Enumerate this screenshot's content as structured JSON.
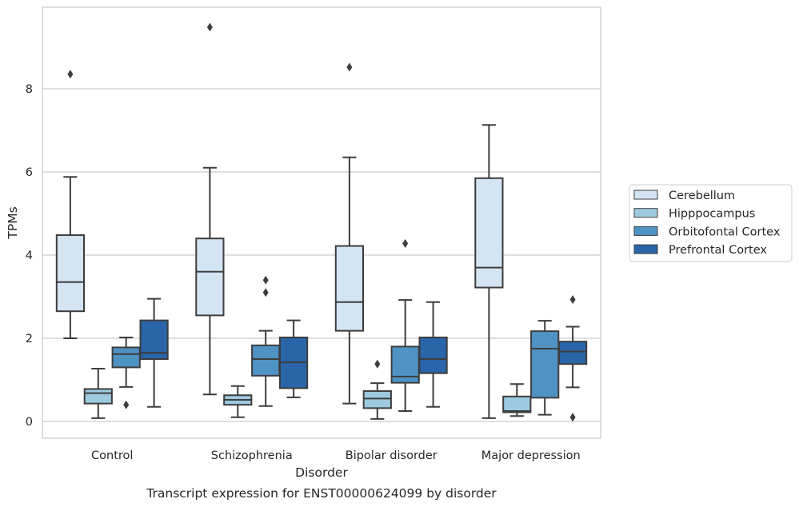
{
  "caption": "Transcript expression for ENST00000624099 by disorder",
  "chart_data": {
    "type": "box",
    "title": "",
    "xlabel": "Disorder",
    "ylabel": "TPMs",
    "ylim": [
      -0.4,
      9.9
    ],
    "yticks": [
      0,
      2,
      4,
      6,
      8
    ],
    "grid": true,
    "legend_position": "right",
    "categories": [
      "Control",
      "Schizophrenia",
      "Bipolar disorder",
      "Major depression"
    ],
    "series": [
      {
        "name": "Cerebellum",
        "color": "#d3e4f3",
        "boxes": [
          {
            "whisker_low": 2.0,
            "q1": 2.65,
            "median": 3.35,
            "q3": 4.48,
            "whisker_high": 5.88,
            "outliers": [
              8.35
            ]
          },
          {
            "whisker_low": 0.65,
            "q1": 2.55,
            "median": 3.6,
            "q3": 4.4,
            "whisker_high": 6.1,
            "outliers": [
              9.48
            ]
          },
          {
            "whisker_low": 0.43,
            "q1": 2.18,
            "median": 2.87,
            "q3": 4.22,
            "whisker_high": 6.35,
            "outliers": [
              8.52
            ]
          },
          {
            "whisker_low": 0.08,
            "q1": 3.22,
            "median": 3.7,
            "q3": 5.85,
            "whisker_high": 7.13,
            "outliers": []
          }
        ]
      },
      {
        "name": "Hipppocampus",
        "color": "#9ecae1",
        "boxes": [
          {
            "whisker_low": 0.08,
            "q1": 0.43,
            "median": 0.68,
            "q3": 0.78,
            "whisker_high": 1.27,
            "outliers": []
          },
          {
            "whisker_low": 0.1,
            "q1": 0.4,
            "median": 0.52,
            "q3": 0.63,
            "whisker_high": 0.85,
            "outliers": []
          },
          {
            "whisker_low": 0.06,
            "q1": 0.32,
            "median": 0.55,
            "q3": 0.73,
            "whisker_high": 0.92,
            "outliers": [
              1.38
            ]
          },
          {
            "whisker_low": 0.13,
            "q1": 0.22,
            "median": 0.25,
            "q3": 0.6,
            "whisker_high": 0.9,
            "outliers": []
          }
        ]
      },
      {
        "name": "Orbitofontal Cortex",
        "color": "#4f93c5",
        "boxes": [
          {
            "whisker_low": 0.83,
            "q1": 1.3,
            "median": 1.62,
            "q3": 1.78,
            "whisker_high": 2.02,
            "outliers": [
              0.4
            ]
          },
          {
            "whisker_low": 0.37,
            "q1": 1.1,
            "median": 1.5,
            "q3": 1.83,
            "whisker_high": 2.18,
            "outliers": [
              3.1,
              3.4
            ]
          },
          {
            "whisker_low": 0.25,
            "q1": 0.93,
            "median": 1.08,
            "q3": 1.8,
            "whisker_high": 2.92,
            "outliers": [
              4.28
            ]
          },
          {
            "whisker_low": 0.16,
            "q1": 0.57,
            "median": 1.75,
            "q3": 2.17,
            "whisker_high": 2.42,
            "outliers": []
          }
        ]
      },
      {
        "name": "Prefrontal Cortex",
        "color": "#2965a8",
        "boxes": [
          {
            "whisker_low": 0.35,
            "q1": 1.5,
            "median": 1.65,
            "q3": 2.43,
            "whisker_high": 2.95,
            "outliers": []
          },
          {
            "whisker_low": 0.58,
            "q1": 0.8,
            "median": 1.42,
            "q3": 2.02,
            "whisker_high": 2.43,
            "outliers": []
          },
          {
            "whisker_low": 0.35,
            "q1": 1.16,
            "median": 1.5,
            "q3": 2.02,
            "whisker_high": 2.87,
            "outliers": []
          },
          {
            "whisker_low": 0.82,
            "q1": 1.38,
            "median": 1.68,
            "q3": 1.92,
            "whisker_high": 2.28,
            "outliers": [
              2.93,
              0.1
            ]
          }
        ]
      }
    ]
  }
}
